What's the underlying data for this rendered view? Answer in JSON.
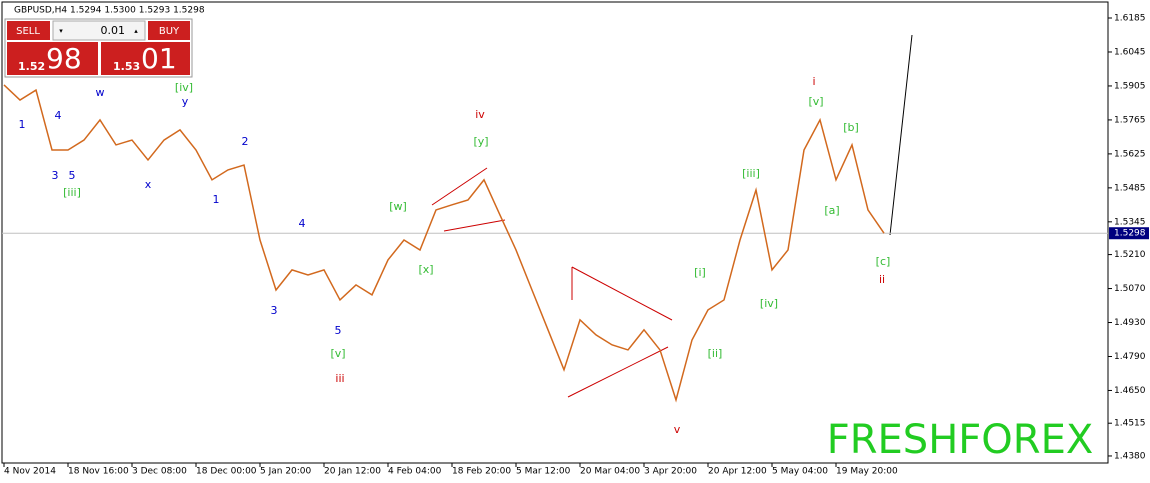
{
  "chart_data": {
    "type": "line",
    "title": "GBPUSD,H4  1.5294 1.5300 1.5293 1.5298",
    "categories": [
      "4 Nov 2014",
      null,
      null,
      null,
      "18 Nov 16:00",
      null,
      null,
      null,
      "3 Dec 08:00",
      null,
      null,
      null,
      "18 Dec 00:00",
      null,
      null,
      null,
      "5 Jan 20:00",
      null,
      null,
      null,
      "20 Jan 12:00",
      null,
      null,
      null,
      "4 Feb 04:00",
      null,
      null,
      null,
      "18 Feb 20:00",
      null,
      null,
      null,
      "5 Mar 12:00",
      null,
      null,
      null,
      "20 Mar 04:00",
      null,
      null,
      null,
      "3 Apr 20:00",
      null,
      null,
      null,
      "20 Apr 12:00",
      null,
      null,
      null,
      "5 May 04:00",
      null,
      null,
      null,
      "19 May 20:00",
      null,
      null,
      null
    ],
    "series": [
      {
        "name": "GBPUSD",
        "color": "#d2691e",
        "values": [
          1.5909,
          1.5847,
          1.5888,
          1.5641,
          1.5641,
          1.5682,
          1.5765,
          1.5662,
          1.5682,
          1.56,
          1.5682,
          1.5724,
          1.5641,
          1.5518,
          1.5559,
          1.5579,
          1.527,
          1.5064,
          1.5147,
          1.5126,
          1.5147,
          1.5023,
          1.5085,
          1.5044,
          1.5188,
          1.527,
          1.5229,
          1.5394,
          1.5415,
          1.5435,
          1.5518,
          1.5373,
          1.5229,
          1.5064,
          1.49,
          1.4735,
          1.4941,
          1.4879,
          1.4838,
          1.4817,
          1.49,
          1.4817,
          1.4611,
          1.4858,
          1.4982,
          1.5023,
          1.527,
          1.5476,
          1.5147,
          1.5229,
          1.5641,
          1.5765,
          1.5518,
          1.5662,
          1.5394,
          1.5298
        ]
      }
    ],
    "current_price": 1.5298,
    "ylim": [
      1.4351,
      1.6251
    ],
    "yticks": [
      1.6185,
      1.6045,
      1.5905,
      1.5765,
      1.5625,
      1.5485,
      1.5345,
      {
        "value": 1.521,
        "label": "1.5210"
      },
      {
        "value": 1.507,
        "label": "1.5070"
      },
      {
        "value": 1.493,
        "label": "1.4930"
      },
      {
        "value": 1.479,
        "label": "1.4790"
      },
      {
        "value": 1.465,
        "label": "1.4650"
      },
      1.4515,
      {
        "value": 1.438,
        "label": "1.4380"
      }
    ],
    "annotation_groups": [
      {
        "color": "#0000cc",
        "labels": [
          "1",
          "4",
          "w",
          "y",
          "3",
          "5",
          "x",
          "2",
          "1",
          "4",
          "3",
          "5"
        ]
      },
      {
        "color": "#33bb33",
        "labels": [
          "[iv]",
          "[iii]",
          "[w]",
          "[y]",
          "[x]",
          "[v]",
          "[i]",
          "[ii]",
          "[iii]",
          "[iv]",
          "[v]",
          "[b]",
          "[a]",
          "[c]"
        ]
      },
      {
        "color": "#cc0000",
        "labels": [
          "iv",
          "iii",
          "v",
          "i",
          "ii"
        ]
      }
    ]
  },
  "trade_panel": {
    "sell": "SELL",
    "lot": "0.01",
    "buy": "BUY",
    "bid_small": "1.52",
    "bid_big": "98",
    "ask_small": "1.53",
    "ask_big": "01"
  },
  "watermark": "FRESHFOREX"
}
